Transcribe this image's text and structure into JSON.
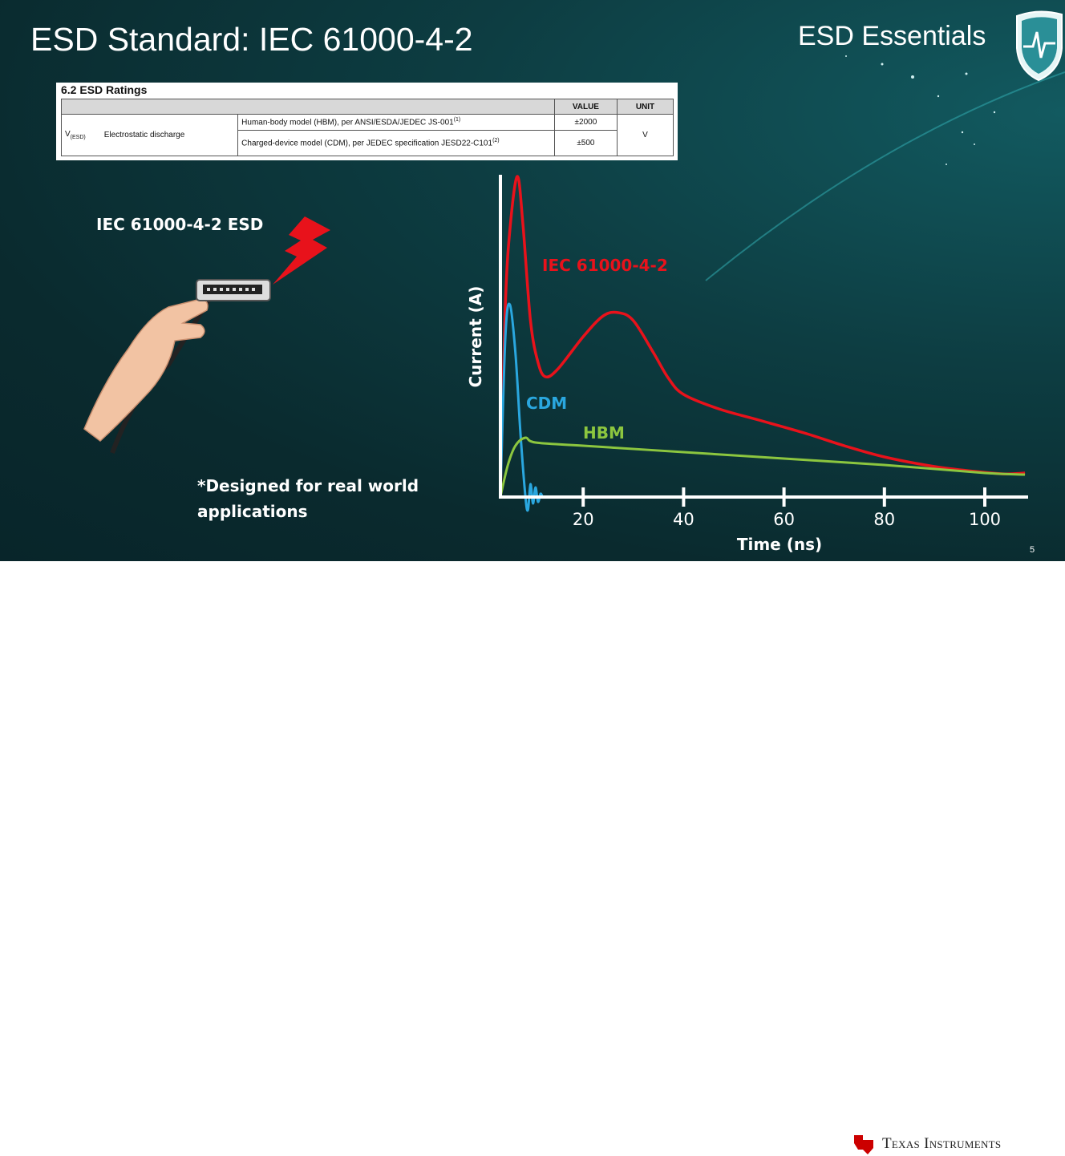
{
  "slide": {
    "title": "ESD Standard: IEC 61000-4-2",
    "brand": "ESD Essentials",
    "page_number": "5",
    "left_label": "IEC 61000-4-2 ESD",
    "note_line1": "*Designed for real world",
    "note_line2": "applications",
    "footer_logo_text": "Texas Instruments"
  },
  "esd_table": {
    "caption": "6.2   ESD Ratings",
    "headers": {
      "value": "VALUE",
      "unit": "UNIT"
    },
    "symbol": "V",
    "symbol_sub": "(ESD)",
    "parameter": "Electrostatic discharge",
    "rows": [
      {
        "condition": "Human-body model (HBM), per ANSI/ESDA/JEDEC JS-001",
        "note": "(1)",
        "value": "±2000"
      },
      {
        "condition": "Charged-device model (CDM), per JEDEC specification JESD22-C101",
        "note": "(2)",
        "value": "±500"
      }
    ],
    "unit": "V"
  },
  "chart_data": {
    "type": "line",
    "xlabel": "Time (ns)",
    "ylabel": "Current (A)",
    "xticks": [
      20,
      40,
      60,
      80,
      100
    ],
    "xlim": [
      3.5,
      108
    ],
    "ylim": [
      0,
      1
    ],
    "grid": false,
    "series": [
      {
        "name": "IEC 61000-4-2",
        "color": "#e8121b",
        "x": [
          3.5,
          4.5,
          5.5,
          6.9,
          8,
          9.5,
          11,
          12.5,
          15,
          20,
          24,
          27,
          30,
          34,
          37,
          40,
          47,
          55,
          64,
          72,
          80,
          90,
          98,
          104,
          108
        ],
        "y": [
          0.0,
          0.6,
          0.85,
          1.0,
          0.85,
          0.55,
          0.42,
          0.375,
          0.4,
          0.5,
          0.565,
          0.575,
          0.55,
          0.45,
          0.37,
          0.32,
          0.275,
          0.24,
          0.2,
          0.16,
          0.125,
          0.095,
          0.08,
          0.072,
          0.075
        ]
      },
      {
        "name": "CDM",
        "color": "#2aa7df",
        "x": [
          3.5,
          4.5,
          5.4,
          6.5,
          7.5,
          8.5,
          9,
          9.5,
          10,
          10.5,
          11,
          11.5,
          12,
          13
        ],
        "y": [
          0.0,
          0.5,
          0.6,
          0.45,
          0.2,
          0.0,
          -0.04,
          0.04,
          -0.02,
          0.03,
          -0.015,
          0.01,
          0.0,
          0.0
        ]
      },
      {
        "name": "HBM",
        "color": "#8cc63f",
        "x": [
          3.5,
          5,
          6.5,
          8.5,
          10.5,
          20,
          40,
          60,
          80,
          100,
          108
        ],
        "y": [
          0.0,
          0.1,
          0.16,
          0.185,
          0.17,
          0.16,
          0.14,
          0.12,
          0.1,
          0.075,
          0.07
        ]
      }
    ]
  }
}
